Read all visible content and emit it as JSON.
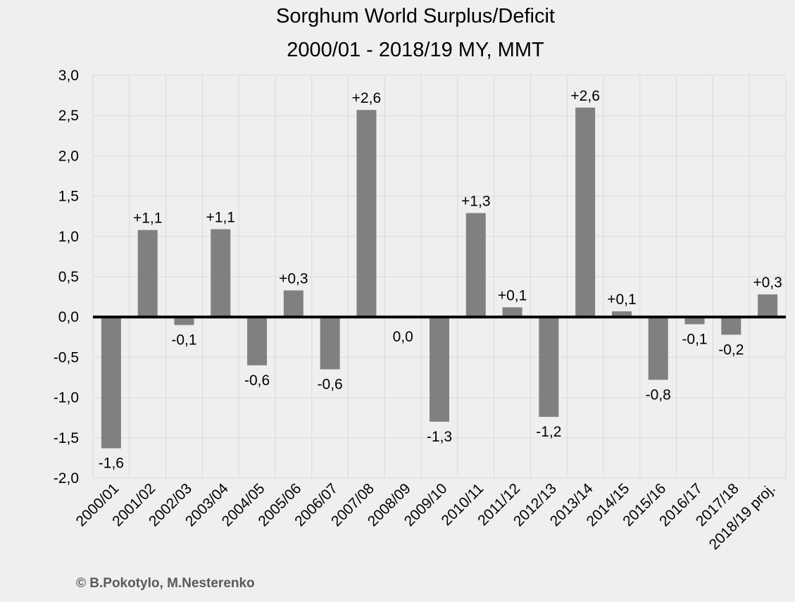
{
  "chart_data": {
    "type": "bar",
    "title": "Sorghum World Surplus/Deficit",
    "subtitle": "2000/01 - 2018/19 MY, MMT",
    "xlabel": "",
    "ylabel": "",
    "ylim": [
      -2.0,
      3.0
    ],
    "ytick_labels": [
      "3,0",
      "2,5",
      "2,0",
      "1,5",
      "1,0",
      "0,5",
      "0,0",
      "-0,5",
      "-1,0",
      "-1,5",
      "-2,0"
    ],
    "grid": true,
    "categories": [
      "2000/01",
      "2001/02",
      "2002/03",
      "2003/04",
      "2004/05",
      "2005/06",
      "2006/07",
      "2007/08",
      "2008/09",
      "2009/10",
      "2010/11",
      "2011/12",
      "2012/13",
      "2013/14",
      "2014/15",
      "2015/16",
      "2016/17",
      "2017/18",
      "2018/19 proj."
    ],
    "values": [
      -1.63,
      1.08,
      -0.1,
      1.09,
      -0.6,
      0.33,
      -0.65,
      2.57,
      0.0,
      -1.3,
      1.29,
      0.12,
      -1.24,
      2.6,
      0.07,
      -0.78,
      -0.09,
      -0.22,
      0.28
    ],
    "data_labels": [
      "-1,6",
      "+1,1",
      "-0,1",
      "+1,1",
      "-0,6",
      "+0,3",
      "-0,6",
      "+2,6",
      "0,0",
      "-1,3",
      "+1,3",
      "+0,1",
      "-1,2",
      "+2,6",
      "+0,1",
      "-0,8",
      "-0,1",
      "-0,2",
      "+0,3"
    ],
    "bar_color": "#808080"
  },
  "copyright": "© B.Pokotylo, M.Nesterenko"
}
